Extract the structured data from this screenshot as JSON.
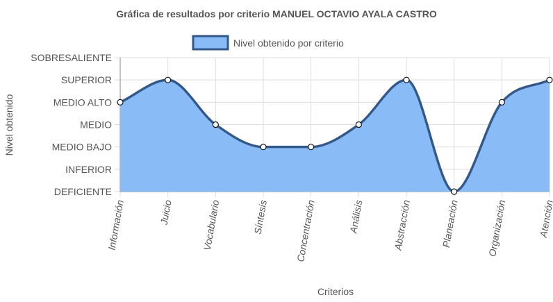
{
  "chart_data": {
    "type": "area",
    "title": "Gráfica de resultados por criterio MANUEL OCTAVIO AYALA CASTRO",
    "xlabel": "Criterios",
    "ylabel": "Nivel obtenido",
    "categories": [
      "Información",
      "Juicio",
      "Vocabulario",
      "Síntesis",
      "Concentración",
      "Análisis",
      "Abstracción",
      "Planeación",
      "Organización",
      "Atención"
    ],
    "levels": [
      "DEFICIENTE",
      "INFERIOR",
      "MEDIO BAJO",
      "MEDIO",
      "MEDIO ALTO",
      "SUPERIOR",
      "SOBRESALIENTE"
    ],
    "ylim": [
      0,
      6
    ],
    "series": [
      {
        "name": "Nivel obtenido por criterio",
        "values": [
          4,
          5,
          3,
          2,
          2,
          3,
          5,
          0,
          4,
          5
        ]
      }
    ],
    "legend_position": "top-center",
    "grid": true,
    "colors": {
      "fill": "#89bbf7",
      "stroke": "#33598a",
      "grid": "#dddddd",
      "text": "#555555"
    }
  }
}
